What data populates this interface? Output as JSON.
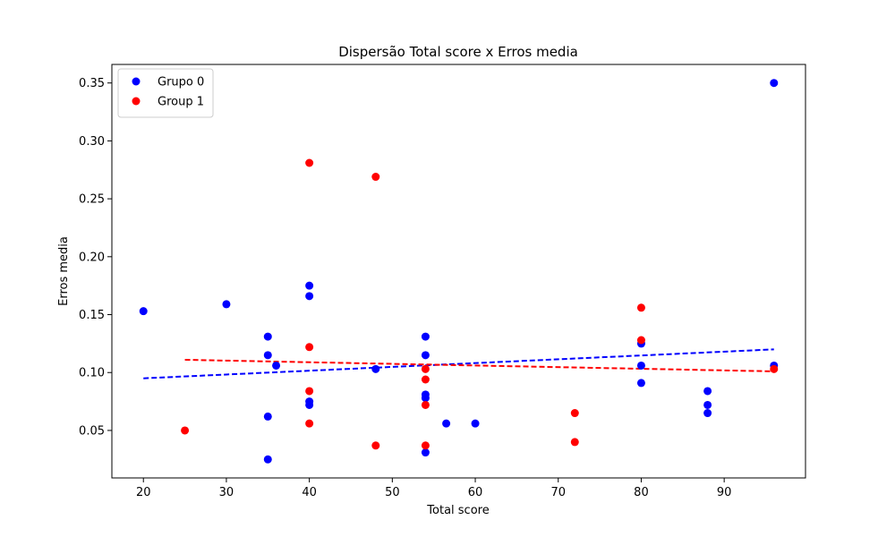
{
  "chart_data": {
    "type": "scatter",
    "title": "Dispersão Total score x Erros media",
    "xlabel": "Total score",
    "ylabel": "Erros media",
    "xlim": [
      16.2,
      99.8
    ],
    "ylim": [
      0.009,
      0.366
    ],
    "xticks": [
      20,
      30,
      40,
      50,
      60,
      70,
      80,
      90
    ],
    "yticks": [
      0.05,
      0.1,
      0.15,
      0.2,
      0.25,
      0.3,
      0.35
    ],
    "grid": false,
    "legend": "upper-left",
    "series": [
      {
        "name": "Grupo 0",
        "color": "#0000ff",
        "points": [
          [
            20,
            0.153
          ],
          [
            30,
            0.159
          ],
          [
            35,
            0.131
          ],
          [
            35,
            0.115
          ],
          [
            35,
            0.062
          ],
          [
            35,
            0.025
          ],
          [
            36,
            0.106
          ],
          [
            40,
            0.175
          ],
          [
            40,
            0.166
          ],
          [
            40,
            0.075
          ],
          [
            40,
            0.072
          ],
          [
            48,
            0.103
          ],
          [
            54,
            0.131
          ],
          [
            54,
            0.115
          ],
          [
            54,
            0.081
          ],
          [
            54,
            0.078
          ],
          [
            54,
            0.031
          ],
          [
            56.5,
            0.056
          ],
          [
            60,
            0.056
          ],
          [
            80,
            0.125
          ],
          [
            80,
            0.106
          ],
          [
            80,
            0.091
          ],
          [
            88,
            0.084
          ],
          [
            88,
            0.072
          ],
          [
            88,
            0.065
          ],
          [
            96,
            0.35
          ],
          [
            96,
            0.106
          ]
        ],
        "trend": {
          "x": [
            20,
            96
          ],
          "y": [
            0.095,
            0.12
          ]
        }
      },
      {
        "name": "Group 1",
        "color": "#ff0000",
        "points": [
          [
            25,
            0.05
          ],
          [
            40,
            0.281
          ],
          [
            40,
            0.122
          ],
          [
            40,
            0.084
          ],
          [
            40,
            0.056
          ],
          [
            48,
            0.269
          ],
          [
            48,
            0.037
          ],
          [
            54,
            0.103
          ],
          [
            54,
            0.094
          ],
          [
            54,
            0.072
          ],
          [
            54,
            0.037
          ],
          [
            72,
            0.065
          ],
          [
            72,
            0.04
          ],
          [
            80,
            0.156
          ],
          [
            80,
            0.128
          ],
          [
            96,
            0.103
          ]
        ],
        "trend": {
          "x": [
            25,
            96
          ],
          "y": [
            0.111,
            0.101
          ]
        }
      }
    ]
  }
}
